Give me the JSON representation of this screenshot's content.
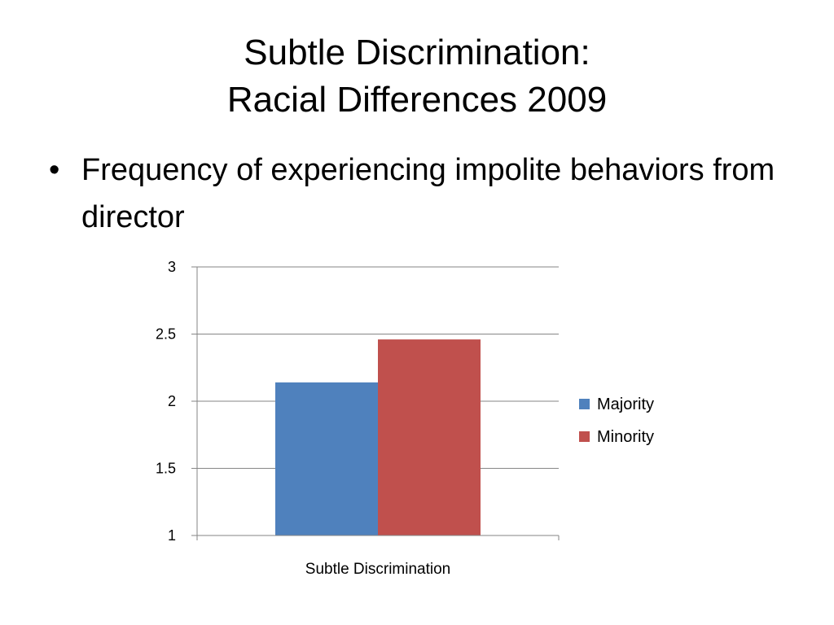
{
  "slide": {
    "title_line1": "Subtle Discrimination:",
    "title_line2": "Racial Differences 2009",
    "bullet": "Frequency of experiencing impolite behaviors from director",
    "bullet_symbol": "•"
  },
  "chart_data": {
    "type": "bar",
    "categories": [
      "Subtle Discrimination"
    ],
    "series": [
      {
        "name": "Majority",
        "values": [
          2.14
        ],
        "color": "#4F81BD"
      },
      {
        "name": "Minority",
        "values": [
          2.46
        ],
        "color": "#C0504D"
      }
    ],
    "title": "",
    "xlabel": "",
    "ylabel": "",
    "ylim": [
      1,
      3
    ],
    "yticks": [
      "1",
      "1.5",
      "2",
      "2.5",
      "3"
    ],
    "grid": true,
    "legend": "right"
  }
}
